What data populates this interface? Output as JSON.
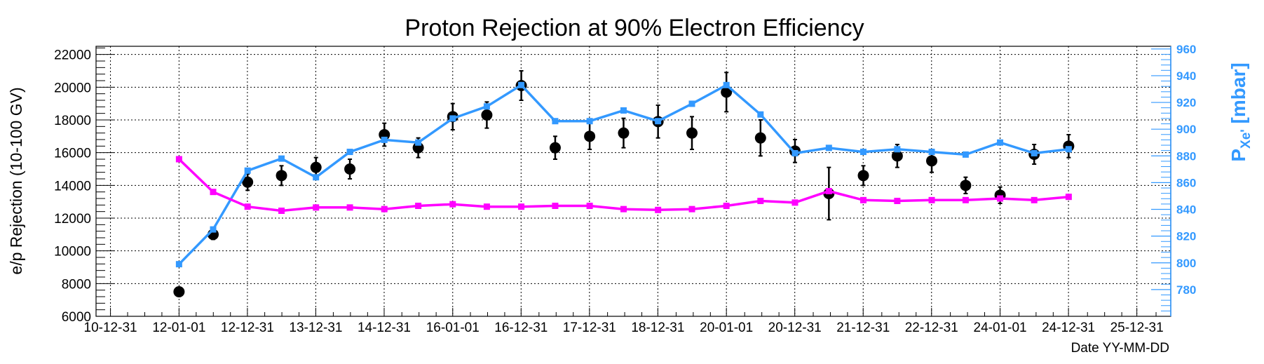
{
  "chart_data": {
    "type": "scatter",
    "title": "Proton Rejection at 90% Electron Efficiency",
    "xlabel": "Date YY-MM-DD",
    "ylabel": "e/p Rejection (10-100 GV)",
    "y2label_main": "P",
    "y2label_sub": "Xe'",
    "y2label_unit": " [mbar]",
    "x_ticks": [
      "10-12-31",
      "12-01-01",
      "12-12-31",
      "13-12-31",
      "14-12-31",
      "16-01-01",
      "16-12-31",
      "17-12-31",
      "18-12-31",
      "20-01-01",
      "20-12-31",
      "21-12-31",
      "22-12-31",
      "24-01-01",
      "24-12-31",
      "25-12-31"
    ],
    "xlim": [
      "2010-10-15",
      "2026-06-30"
    ],
    "ylim": [
      6000,
      22500
    ],
    "y_ticks": [
      6000,
      8000,
      10000,
      12000,
      14000,
      16000,
      18000,
      20000,
      22000
    ],
    "y2lim": [
      760,
      962
    ],
    "y2_ticks": [
      780,
      800,
      820,
      840,
      860,
      880,
      900,
      920,
      940,
      960
    ],
    "grid": true,
    "colors": {
      "rejection": "#000000",
      "pressure": "#3399ff",
      "magenta": "#ff00ff",
      "axis_right": "#3399ff"
    },
    "series": [
      {
        "style": "black-markers-errorbars",
        "axis": "left",
        "points": [
          {
            "x": "2012-01-01",
            "y": 7500,
            "err": 0
          },
          {
            "x": "2012-07-01",
            "y": 11000,
            "err": 300
          },
          {
            "x": "2013-01-01",
            "y": 14200,
            "err": 500
          },
          {
            "x": "2013-07-01",
            "y": 14600,
            "err": 600
          },
          {
            "x": "2014-01-01",
            "y": 15100,
            "err": 600
          },
          {
            "x": "2014-07-01",
            "y": 15000,
            "err": 600
          },
          {
            "x": "2015-01-01",
            "y": 17100,
            "err": 700
          },
          {
            "x": "2015-07-01",
            "y": 16300,
            "err": 600
          },
          {
            "x": "2016-01-01",
            "y": 18200,
            "err": 800
          },
          {
            "x": "2016-07-01",
            "y": 18300,
            "err": 800
          },
          {
            "x": "2017-01-01",
            "y": 20100,
            "err": 900
          },
          {
            "x": "2017-07-01",
            "y": 16300,
            "err": 700
          },
          {
            "x": "2018-01-01",
            "y": 17000,
            "err": 800
          },
          {
            "x": "2018-07-01",
            "y": 17200,
            "err": 900
          },
          {
            "x": "2019-01-01",
            "y": 17900,
            "err": 1000
          },
          {
            "x": "2019-07-01",
            "y": 17200,
            "err": 1000
          },
          {
            "x": "2020-01-01",
            "y": 19700,
            "err": 1200
          },
          {
            "x": "2020-07-01",
            "y": 16900,
            "err": 1100
          },
          {
            "x": "2021-01-01",
            "y": 16100,
            "err": 700
          },
          {
            "x": "2021-07-01",
            "y": 13500,
            "err": 1600
          },
          {
            "x": "2022-01-01",
            "y": 14600,
            "err": 600
          },
          {
            "x": "2022-07-01",
            "y": 15800,
            "err": 700
          },
          {
            "x": "2023-01-01",
            "y": 15500,
            "err": 700
          },
          {
            "x": "2023-07-01",
            "y": 14000,
            "err": 500
          },
          {
            "x": "2024-01-01",
            "y": 13400,
            "err": 500
          },
          {
            "x": "2024-07-01",
            "y": 15900,
            "err": 600
          },
          {
            "x": "2025-01-01",
            "y": 16400,
            "err": 700
          }
        ]
      },
      {
        "style": "blue-line-squares",
        "axis": "right",
        "points": [
          {
            "x": "2012-01-01",
            "y": 799
          },
          {
            "x": "2012-07-01",
            "y": 825
          },
          {
            "x": "2013-01-01",
            "y": 869
          },
          {
            "x": "2013-07-01",
            "y": 878
          },
          {
            "x": "2014-01-01",
            "y": 864
          },
          {
            "x": "2014-07-01",
            "y": 883
          },
          {
            "x": "2015-01-01",
            "y": 892
          },
          {
            "x": "2015-07-01",
            "y": 890
          },
          {
            "x": "2016-01-01",
            "y": 908
          },
          {
            "x": "2016-07-01",
            "y": 917
          },
          {
            "x": "2017-01-01",
            "y": 933
          },
          {
            "x": "2017-07-01",
            "y": 906
          },
          {
            "x": "2018-01-01",
            "y": 906
          },
          {
            "x": "2018-07-01",
            "y": 914
          },
          {
            "x": "2019-01-01",
            "y": 906
          },
          {
            "x": "2019-07-01",
            "y": 919
          },
          {
            "x": "2020-01-01",
            "y": 933
          },
          {
            "x": "2020-07-01",
            "y": 911
          },
          {
            "x": "2021-01-01",
            "y": 882
          },
          {
            "x": "2021-07-01",
            "y": 886
          },
          {
            "x": "2022-01-01",
            "y": 883
          },
          {
            "x": "2022-07-01",
            "y": 885
          },
          {
            "x": "2023-01-01",
            "y": 883
          },
          {
            "x": "2023-07-01",
            "y": 881
          },
          {
            "x": "2024-01-01",
            "y": 890
          },
          {
            "x": "2024-07-01",
            "y": 882
          },
          {
            "x": "2025-01-01",
            "y": 885
          }
        ]
      },
      {
        "style": "magenta-line-squares",
        "axis": "left",
        "points": [
          {
            "x": "2012-01-01",
            "y": 15600
          },
          {
            "x": "2012-07-01",
            "y": 13600
          },
          {
            "x": "2013-01-01",
            "y": 12700
          },
          {
            "x": "2013-07-01",
            "y": 12450
          },
          {
            "x": "2014-01-01",
            "y": 12650
          },
          {
            "x": "2014-07-01",
            "y": 12650
          },
          {
            "x": "2015-01-01",
            "y": 12550
          },
          {
            "x": "2015-07-01",
            "y": 12750
          },
          {
            "x": "2016-01-01",
            "y": 12850
          },
          {
            "x": "2016-07-01",
            "y": 12700
          },
          {
            "x": "2017-01-01",
            "y": 12700
          },
          {
            "x": "2017-07-01",
            "y": 12750
          },
          {
            "x": "2018-01-01",
            "y": 12750
          },
          {
            "x": "2018-07-01",
            "y": 12550
          },
          {
            "x": "2019-01-01",
            "y": 12500
          },
          {
            "x": "2019-07-01",
            "y": 12550
          },
          {
            "x": "2020-01-01",
            "y": 12750
          },
          {
            "x": "2020-07-01",
            "y": 13050
          },
          {
            "x": "2021-01-01",
            "y": 12950
          },
          {
            "x": "2021-07-01",
            "y": 13650
          },
          {
            "x": "2022-01-01",
            "y": 13100
          },
          {
            "x": "2022-07-01",
            "y": 13050
          },
          {
            "x": "2023-01-01",
            "y": 13100
          },
          {
            "x": "2023-07-01",
            "y": 13100
          },
          {
            "x": "2024-01-01",
            "y": 13200
          },
          {
            "x": "2024-07-01",
            "y": 13100
          },
          {
            "x": "2025-01-01",
            "y": 13300
          }
        ]
      }
    ]
  }
}
